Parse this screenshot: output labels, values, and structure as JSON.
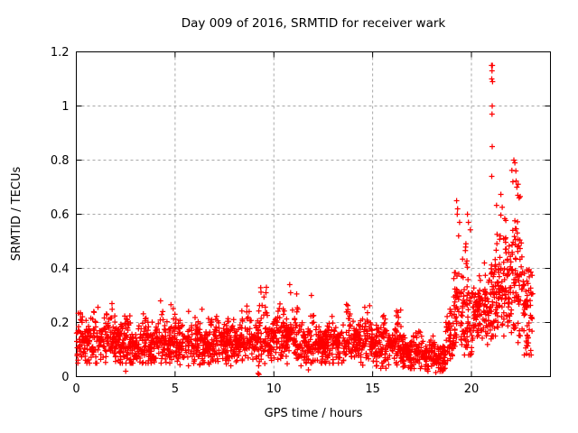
{
  "window": {
    "background": "#ffffff"
  },
  "chart_data": {
    "type": "scatter",
    "title": "Day 009 of 2016, SRMTID for receiver wark",
    "xlabel": "GPS time / hours",
    "ylabel": "SRMTID / TECUs",
    "xlim": [
      0,
      24
    ],
    "ylim": [
      0,
      1.2
    ],
    "xticks": [
      0,
      5,
      10,
      15,
      20
    ],
    "xtick_labels": [
      "0",
      "5",
      "10",
      "15",
      "20"
    ],
    "yticks": [
      0,
      0.2,
      0.4,
      0.6,
      0.8,
      1.0,
      1.2
    ],
    "ytick_labels": [
      "0",
      "0.2",
      "0.4",
      "0.6",
      "0.8",
      "1",
      "1.2"
    ],
    "grid": true,
    "grid_style": "dashed",
    "legend_position": "none",
    "marker": {
      "shape": "plus",
      "color": "#ff0000",
      "size": 7
    },
    "colors": {
      "marker": "#ff0000",
      "grid": "#a8a8a8",
      "axis": "#000000",
      "text": "#000000",
      "background": "#ffffff"
    },
    "seed": 20160109,
    "scatter_segments_comment": "each segment: [t_start_h, t_end_h, n_points, mode_TECU, spread_TECU, min_TECU, max_TECU] estimated from pixels",
    "scatter_segments": [
      [
        0.0,
        1.0,
        110,
        0.13,
        0.05,
        0.05,
        0.24
      ],
      [
        1.0,
        2.5,
        165,
        0.13,
        0.05,
        0.05,
        0.27
      ],
      [
        2.5,
        4.0,
        165,
        0.12,
        0.045,
        0.05,
        0.26
      ],
      [
        4.0,
        5.0,
        110,
        0.13,
        0.05,
        0.05,
        0.28
      ],
      [
        5.0,
        7.0,
        220,
        0.12,
        0.045,
        0.04,
        0.25
      ],
      [
        7.0,
        9.0,
        220,
        0.13,
        0.05,
        0.04,
        0.3
      ],
      [
        9.0,
        11.5,
        275,
        0.14,
        0.055,
        0.04,
        0.33
      ],
      [
        11.5,
        13.5,
        220,
        0.12,
        0.045,
        0.05,
        0.26
      ],
      [
        13.5,
        15.0,
        165,
        0.13,
        0.05,
        0.04,
        0.27
      ],
      [
        15.0,
        16.5,
        165,
        0.12,
        0.05,
        0.03,
        0.29
      ],
      [
        16.5,
        17.5,
        110,
        0.09,
        0.04,
        0.03,
        0.18
      ],
      [
        17.5,
        18.7,
        130,
        0.07,
        0.035,
        0.02,
        0.15
      ],
      [
        18.7,
        19.1,
        45,
        0.12,
        0.05,
        0.04,
        0.25
      ],
      [
        19.1,
        19.6,
        60,
        0.28,
        0.1,
        0.1,
        0.62
      ],
      [
        19.6,
        20.1,
        60,
        0.22,
        0.1,
        0.08,
        0.58
      ],
      [
        20.1,
        21.0,
        115,
        0.24,
        0.07,
        0.1,
        0.42
      ],
      [
        21.0,
        21.3,
        45,
        0.32,
        0.12,
        0.15,
        0.68
      ],
      [
        21.3,
        22.0,
        95,
        0.35,
        0.13,
        0.15,
        0.68
      ],
      [
        22.0,
        22.5,
        70,
        0.38,
        0.15,
        0.12,
        0.78
      ],
      [
        22.5,
        23.1,
        70,
        0.26,
        0.12,
        0.08,
        0.55
      ]
    ],
    "outlier_points_comment": "distinct individually-visible points [t_h, TECU]",
    "outlier_points": [
      [
        21.02,
        1.15
      ],
      [
        21.06,
        1.15
      ],
      [
        21.04,
        1.13
      ],
      [
        21.03,
        1.1
      ],
      [
        21.07,
        1.09
      ],
      [
        21.05,
        1.0
      ],
      [
        21.04,
        0.97
      ],
      [
        21.05,
        0.85
      ],
      [
        21.03,
        0.74
      ],
      [
        19.25,
        0.65
      ],
      [
        19.3,
        0.62
      ],
      [
        19.28,
        0.6
      ],
      [
        19.4,
        0.57
      ],
      [
        19.35,
        0.52
      ],
      [
        19.8,
        0.6
      ],
      [
        19.85,
        0.57
      ],
      [
        22.15,
        0.8
      ],
      [
        22.2,
        0.79
      ],
      [
        22.25,
        0.76
      ],
      [
        22.1,
        0.72
      ],
      [
        22.3,
        0.7
      ],
      [
        22.35,
        0.67
      ],
      [
        10.8,
        0.34
      ],
      [
        10.85,
        0.31
      ],
      [
        9.6,
        0.31
      ],
      [
        11.9,
        0.3
      ],
      [
        2.5,
        0.02
      ],
      [
        9.2,
        0.012
      ],
      [
        9.25,
        0.008
      ],
      [
        11.75,
        0.025
      ],
      [
        17.8,
        0.02
      ],
      [
        18.2,
        0.015
      ],
      [
        18.5,
        0.02
      ]
    ]
  }
}
